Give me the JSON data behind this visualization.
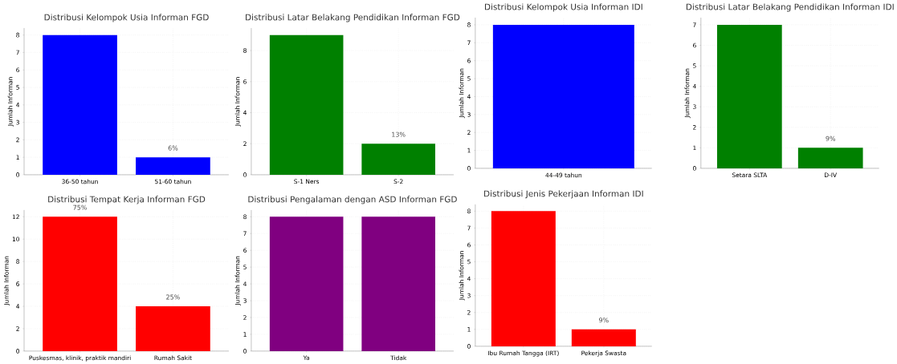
{
  "chart_data": [
    {
      "type": "bar",
      "title": "Distribusi Kelompok Usia Informan FGD",
      "ylabel": "Jumlah Informan",
      "categories": [
        "36-50 tahun",
        "51-60 tahun"
      ],
      "values": [
        8,
        1
      ],
      "color": "#0000ff",
      "ylim": [
        0,
        8.4
      ],
      "yticks": [
        0,
        1,
        2,
        3,
        4,
        5,
        6,
        7,
        8
      ],
      "grid": true,
      "annotations": [
        {
          "text": "6%",
          "x": "51-60 tahun",
          "y": 1
        }
      ]
    },
    {
      "type": "bar",
      "title": "Distribusi Latar Belakang Pendidikan Informan FGD",
      "ylabel": "Jumlah Informan",
      "categories": [
        "S-1 Ners",
        "S-2"
      ],
      "values": [
        9,
        2
      ],
      "color": "#008000",
      "ylim": [
        0,
        9.45
      ],
      "yticks": [
        0,
        2,
        4,
        6,
        8
      ],
      "grid": true,
      "annotations": [
        {
          "text": "13%",
          "x": "S-2",
          "y": 2
        }
      ]
    },
    {
      "type": "bar",
      "title": "Distribusi Kelompok Usia Informan IDI",
      "ylabel": "Jumlah Informan",
      "categories": [
        "44-49 tahun"
      ],
      "values": [
        8
      ],
      "color": "#0000ff",
      "ylim": [
        0,
        8.4
      ],
      "yticks": [
        0,
        1,
        2,
        3,
        4,
        5,
        6,
        7,
        8
      ],
      "grid": true
    },
    {
      "type": "bar",
      "title": "Distribusi Latar Belakang Pendidikan Informan IDI",
      "ylabel": "Jumlah Informan",
      "categories": [
        "Setara SLTA",
        "D-IV"
      ],
      "values": [
        7,
        1
      ],
      "color": "#008000",
      "ylim": [
        0,
        7.35
      ],
      "yticks": [
        0,
        1,
        2,
        3,
        4,
        5,
        6,
        7
      ],
      "grid": true,
      "annotations": [
        {
          "text": "9%",
          "x": "D-IV",
          "y": 1
        }
      ]
    },
    {
      "type": "bar",
      "title": "Distribusi Tempat Kerja Informan FGD",
      "ylabel": "Jumlah Informan",
      "categories": [
        "Puskesmas, klinik, praktik mandiri",
        "Rumah Sakit"
      ],
      "values": [
        12,
        4
      ],
      "color": "#ff0000",
      "ylim": [
        0,
        12.6
      ],
      "yticks": [
        0,
        2,
        4,
        6,
        8,
        10,
        12
      ],
      "grid": true,
      "annotations": [
        {
          "text": "75%",
          "x": "Puskesmas, klinik, praktik mandiri",
          "y": 12
        },
        {
          "text": "25%",
          "x": "Rumah Sakit",
          "y": 4
        }
      ]
    },
    {
      "type": "bar",
      "title": "Distribusi Pengalaman dengan ASD Informan FGD",
      "ylabel": "Jumlah Informan",
      "categories": [
        "Ya",
        "Tidak"
      ],
      "values": [
        8,
        8
      ],
      "color": "#800080",
      "ylim": [
        0,
        8.4
      ],
      "yticks": [
        0,
        1,
        2,
        3,
        4,
        5,
        6,
        7,
        8
      ],
      "grid": true
    },
    {
      "type": "bar",
      "title": "Distribusi Jenis Pekerjaan Informan IDI",
      "ylabel": "Jumlah Informan",
      "categories": [
        "Ibu Rumah Tangga (IRT)",
        "Pekerja Swasta"
      ],
      "values": [
        8,
        1
      ],
      "color": "#ff0000",
      "ylim": [
        0,
        8.4
      ],
      "yticks": [
        0,
        1,
        2,
        3,
        4,
        5,
        6,
        7,
        8
      ],
      "grid": true,
      "annotations": [
        {
          "text": "9%",
          "x": "Pekerja Swasta",
          "y": 1
        }
      ]
    }
  ]
}
